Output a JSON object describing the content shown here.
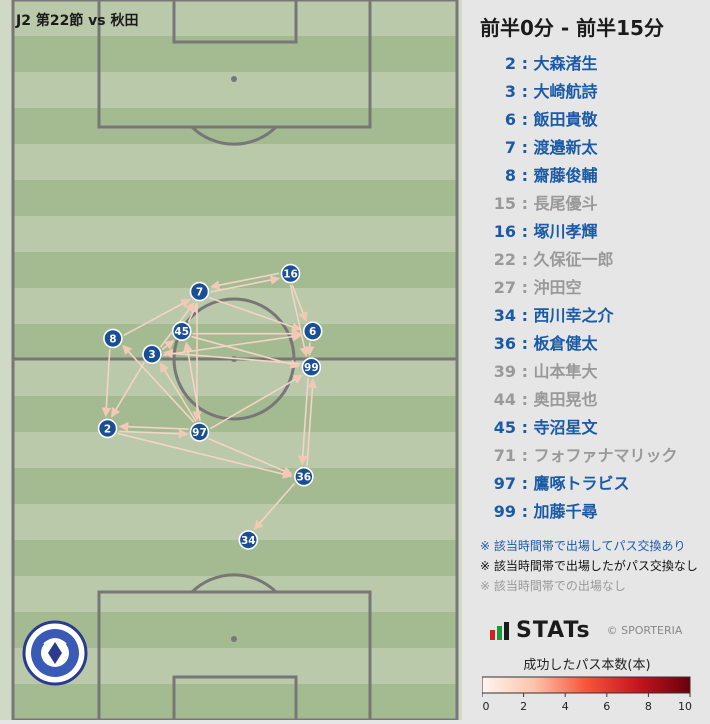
{
  "match_label": "J2 第22節 vs 秋田",
  "period": "前半0分 - 前半15分",
  "players": [
    {
      "num": "2",
      "name": "大森渚生",
      "status": "exchanged"
    },
    {
      "num": "3",
      "name": "大崎航詩",
      "status": "exchanged"
    },
    {
      "num": "6",
      "name": "飯田貴敬",
      "status": "exchanged"
    },
    {
      "num": "7",
      "name": "渡邉新太",
      "status": "exchanged"
    },
    {
      "num": "8",
      "name": "齋藤俊輔",
      "status": "exchanged"
    },
    {
      "num": "15",
      "name": "長尾優斗",
      "status": "none"
    },
    {
      "num": "16",
      "name": "塚川孝輝",
      "status": "exchanged"
    },
    {
      "num": "22",
      "name": "久保征一郎",
      "status": "none"
    },
    {
      "num": "27",
      "name": "沖田空",
      "status": "none"
    },
    {
      "num": "34",
      "name": "西川幸之介",
      "status": "exchanged"
    },
    {
      "num": "36",
      "name": "板倉健太",
      "status": "exchanged"
    },
    {
      "num": "39",
      "name": "山本隼大",
      "status": "none"
    },
    {
      "num": "44",
      "name": "奥田晃也",
      "status": "none"
    },
    {
      "num": "45",
      "name": "寺沼星文",
      "status": "exchanged"
    },
    {
      "num": "71",
      "name": "フォファナマリック",
      "status": "none"
    },
    {
      "num": "97",
      "name": "鷹啄トラビス",
      "status": "exchanged"
    },
    {
      "num": "99",
      "name": "加藤千尋",
      "status": "exchanged"
    }
  ],
  "legend": {
    "exchanged": "※ 該当時間帯で出場してパス交換あり",
    "no_exchange": "※ 該当時間帯で出場したがパス交換なし",
    "not_played": "※ 該当時間帯での出場なし"
  },
  "brand": {
    "name": "STATs",
    "copyright": "© SPORTERIA"
  },
  "logo_text": "FC MITO HOLLY HOCK 1994",
  "colors": {
    "exchanged": "#1a5aa6",
    "no_exchange": "#111111",
    "not_played": "#999999",
    "node_fill": "#1a4f96",
    "pitch_light": "#b9c9a9",
    "pitch_dark": "#a4bb91",
    "pitch_line": "#777777"
  },
  "chart_data": {
    "type": "pass-network",
    "pitch_orientation": "vertical, attacking upward",
    "colorbar": {
      "title": "成功したパス本数(本)",
      "range": [
        0,
        10
      ],
      "ticks": [
        "0",
        "2",
        "4",
        "6",
        "8",
        "10"
      ],
      "low_color": "#fff5f0",
      "high_color": "#67000d"
    },
    "nodes": [
      {
        "num": "7",
        "x": 0.42,
        "y": 0.595
      },
      {
        "num": "16",
        "x": 0.625,
        "y": 0.62
      },
      {
        "num": "45",
        "x": 0.38,
        "y": 0.54
      },
      {
        "num": "6",
        "x": 0.675,
        "y": 0.54
      },
      {
        "num": "8",
        "x": 0.225,
        "y": 0.53
      },
      {
        "num": "3",
        "x": 0.313,
        "y": 0.508
      },
      {
        "num": "99",
        "x": 0.672,
        "y": 0.49
      },
      {
        "num": "2",
        "x": 0.213,
        "y": 0.405
      },
      {
        "num": "97",
        "x": 0.42,
        "y": 0.4
      },
      {
        "num": "36",
        "x": 0.655,
        "y": 0.338
      },
      {
        "num": "34",
        "x": 0.53,
        "y": 0.25
      }
    ],
    "edges": [
      {
        "from": "8",
        "to": "7",
        "value": 1
      },
      {
        "from": "3",
        "to": "7",
        "value": 1
      },
      {
        "from": "45",
        "to": "7",
        "value": 1
      },
      {
        "from": "7",
        "to": "16",
        "value": 1
      },
      {
        "from": "16",
        "to": "7",
        "value": 1
      },
      {
        "from": "7",
        "to": "6",
        "value": 1
      },
      {
        "from": "16",
        "to": "6",
        "value": 1
      },
      {
        "from": "16",
        "to": "99",
        "value": 1
      },
      {
        "from": "45",
        "to": "6",
        "value": 1
      },
      {
        "from": "45",
        "to": "99",
        "value": 1
      },
      {
        "from": "3",
        "to": "6",
        "value": 1
      },
      {
        "from": "3",
        "to": "45",
        "value": 1
      },
      {
        "from": "8",
        "to": "2",
        "value": 1
      },
      {
        "from": "3",
        "to": "2",
        "value": 1
      },
      {
        "from": "2",
        "to": "97",
        "value": 1
      },
      {
        "from": "97",
        "to": "2",
        "value": 1
      },
      {
        "from": "97",
        "to": "8",
        "value": 1
      },
      {
        "from": "97",
        "to": "3",
        "value": 1
      },
      {
        "from": "97",
        "to": "45",
        "value": 1
      },
      {
        "from": "97",
        "to": "99",
        "value": 1
      },
      {
        "from": "97",
        "to": "36",
        "value": 1
      },
      {
        "from": "2",
        "to": "36",
        "value": 1
      },
      {
        "from": "36",
        "to": "99",
        "value": 1
      },
      {
        "from": "99",
        "to": "36",
        "value": 1
      },
      {
        "from": "36",
        "to": "34",
        "value": 1
      },
      {
        "from": "7",
        "to": "97",
        "value": 1
      },
      {
        "from": "99",
        "to": "3",
        "value": 1
      },
      {
        "from": "6",
        "to": "99",
        "value": 1
      }
    ]
  }
}
